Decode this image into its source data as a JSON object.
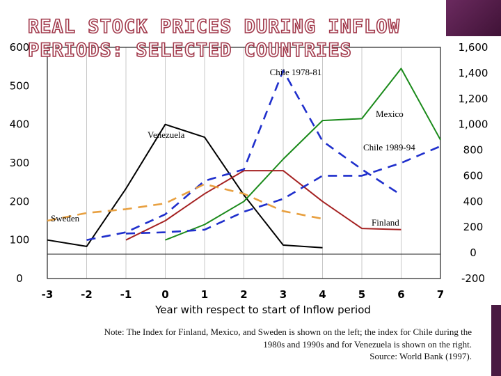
{
  "title": {
    "line1": "REAL STOCK PRICES DURING INFLOW",
    "line2": "PERIODS: SELECTED COUNTRIES"
  },
  "note": {
    "line1": "Note:  The Index for Finland, Mexico, and Sweden is shown on the left; the index for Chile during the",
    "line2": "1980s and 1990s and for Venezuela is shown on the right.",
    "line3": "Source:  World Bank (1997)."
  },
  "chart_data": {
    "type": "line",
    "xlabel": "Year with respect to start of Inflow period",
    "x_ticks": [
      "-3",
      "-2",
      "-1",
      "0",
      "1",
      "2",
      "3",
      "4",
      "5",
      "6",
      "7"
    ],
    "xlim": [
      -3,
      7
    ],
    "y_left": {
      "ticks": [
        "0",
        "100",
        "200",
        "300",
        "400",
        "500",
        "600"
      ],
      "ylim": [
        0,
        600
      ]
    },
    "y_right": {
      "ticks": [
        "-200",
        "0",
        "200",
        "400",
        "600",
        "800",
        "1,000",
        "1,200",
        "1,400",
        "1,600"
      ],
      "ylim": [
        -200,
        1600
      ]
    },
    "series": [
      {
        "name": "Venezuela",
        "axis": "right",
        "color": "#000000",
        "dash": "solid",
        "x": [
          -3,
          -2,
          -1,
          0,
          1,
          2,
          3,
          4
        ],
        "y": [
          100,
          50,
          500,
          1000,
          900,
          450,
          60,
          40
        ]
      },
      {
        "name": "Mexico",
        "axis": "left",
        "color": "#1a8a1a",
        "dash": "solid",
        "x": [
          0,
          1,
          2,
          3,
          4,
          5,
          6,
          7
        ],
        "y": [
          100,
          140,
          200,
          310,
          410,
          415,
          545,
          360
        ]
      },
      {
        "name": "Finland",
        "axis": "left",
        "color": "#a52222",
        "dash": "solid",
        "x": [
          -1,
          0,
          1,
          2,
          3,
          4,
          5,
          6
        ],
        "y": [
          100,
          150,
          220,
          280,
          280,
          200,
          130,
          127
        ]
      },
      {
        "name": "Chile 1978-81",
        "axis": "right",
        "color": "#1f2fcc",
        "dash": "dashed",
        "x": [
          -2,
          -1,
          0,
          1,
          2,
          3,
          4,
          5,
          6
        ],
        "y": [
          100,
          160,
          300,
          560,
          650,
          1420,
          870,
          650,
          450
        ]
      },
      {
        "name": "Chile 1989-94",
        "axis": "right",
        "color": "#1f2fcc",
        "dash": "dashed",
        "x": [
          -1,
          0,
          1,
          2,
          3,
          4,
          5,
          6,
          7
        ],
        "y": [
          150,
          160,
          180,
          320,
          420,
          600,
          600,
          700,
          830
        ]
      },
      {
        "name": "Sweden",
        "axis": "left",
        "color": "#e8a040",
        "dash": "dashed",
        "x": [
          -3,
          -2,
          -1,
          0,
          1,
          2,
          3,
          4
        ],
        "y": [
          150,
          170,
          180,
          195,
          245,
          220,
          175,
          155
        ]
      }
    ],
    "labels": [
      "Chile 1978-81",
      "Mexico",
      "Venezuela",
      "Chile 1989-94",
      "Sweden",
      "Finland"
    ],
    "grid": "vertical"
  }
}
